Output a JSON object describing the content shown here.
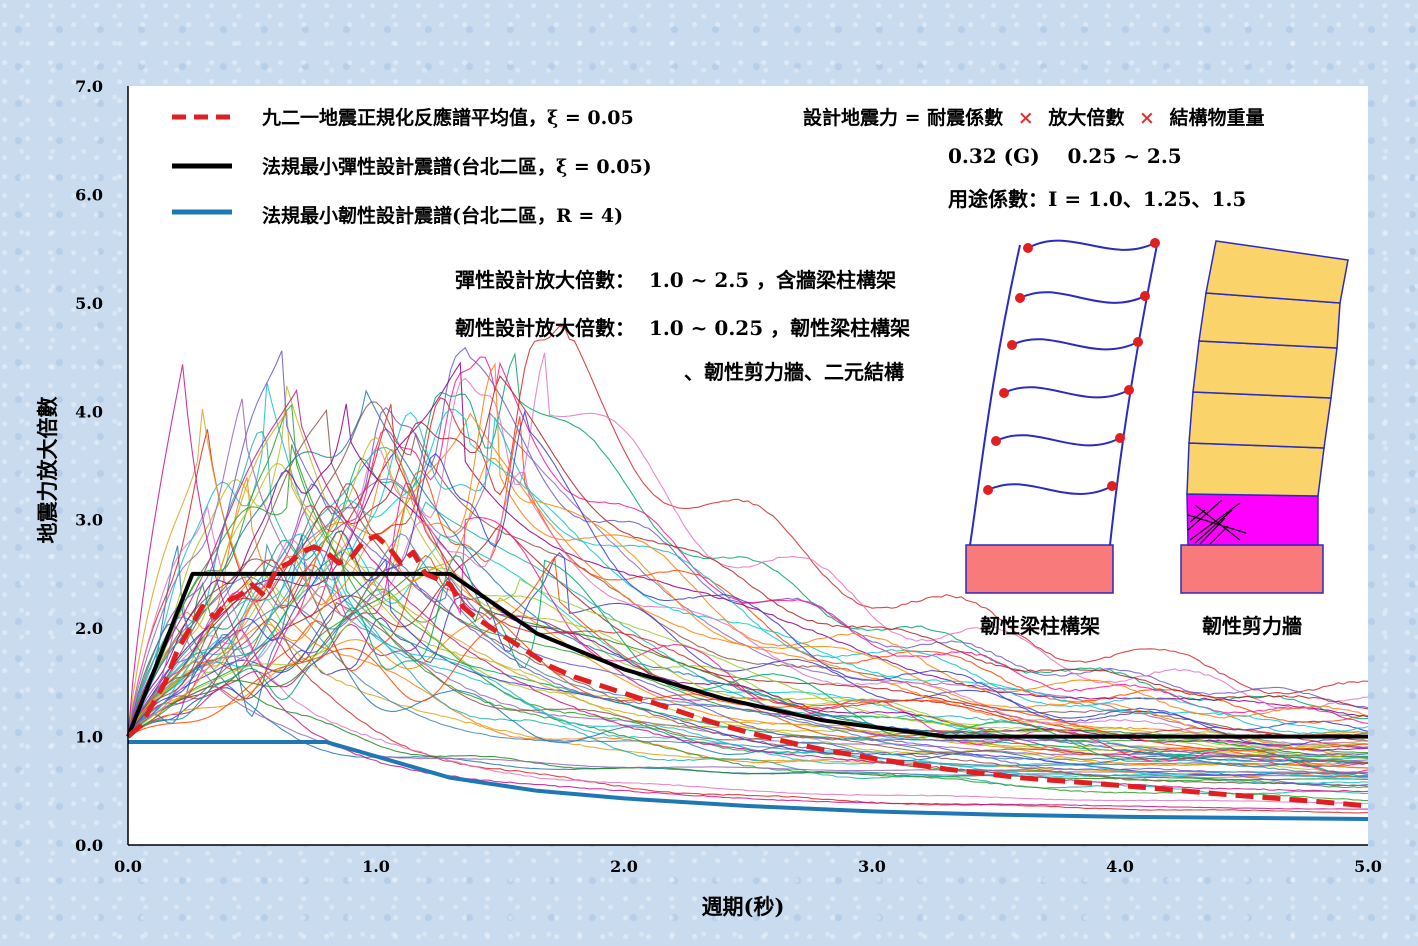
{
  "chart_data": {
    "type": "line",
    "xlabel": "週期(秒)",
    "ylabel": "地震力放大倍數",
    "xlim": [
      0,
      5
    ],
    "ylim": [
      0,
      7
    ],
    "x_ticks": [
      "0.0",
      "1.0",
      "2.0",
      "3.0",
      "4.0",
      "5.0"
    ],
    "y_ticks": [
      "0.0",
      "1.0",
      "2.0",
      "3.0",
      "4.0",
      "5.0",
      "6.0",
      "7.0"
    ],
    "grid": false,
    "legend_position": "top-left",
    "legend": [
      {
        "label": "九二一地震正規化反應譜平均值，ξ = 0.05",
        "color": "#e02020",
        "style": "dashed"
      },
      {
        "label": "法規最小彈性設計震譜(台北二區，ξ = 0.05)",
        "color": "#000000",
        "style": "solid"
      },
      {
        "label": "法規最小韌性設計震譜(台北二區，R = 4)",
        "color": "#1f77b4",
        "style": "solid"
      }
    ],
    "series": [
      {
        "name": "九二一地震正規化反應譜平均值，ξ = 0.05",
        "color": "#e02020",
        "x": [
          0,
          0.05,
          0.1,
          0.15,
          0.2,
          0.25,
          0.3,
          0.35,
          0.4,
          0.45,
          0.5,
          0.55,
          0.6,
          0.65,
          0.7,
          0.75,
          0.8,
          0.85,
          0.9,
          0.95,
          1.0,
          1.05,
          1.1,
          1.15,
          1.2,
          1.25,
          1.3,
          1.35,
          1.4,
          1.5,
          1.6,
          1.7,
          1.8,
          2.0,
          2.2,
          2.4,
          2.6,
          2.8,
          3.0,
          3.3,
          3.6,
          4.0,
          4.4,
          4.8,
          5.0
        ],
        "y": [
          1.0,
          1.1,
          1.3,
          1.5,
          1.8,
          2.0,
          2.2,
          2.1,
          2.25,
          2.3,
          2.4,
          2.3,
          2.55,
          2.6,
          2.7,
          2.75,
          2.7,
          2.6,
          2.65,
          2.8,
          2.85,
          2.75,
          2.6,
          2.7,
          2.5,
          2.45,
          2.4,
          2.2,
          2.1,
          1.95,
          1.8,
          1.65,
          1.55,
          1.4,
          1.25,
          1.1,
          0.98,
          0.88,
          0.8,
          0.7,
          0.62,
          0.55,
          0.47,
          0.4,
          0.36
        ]
      },
      {
        "name": "法規最小彈性設計震譜(台北二區，ξ = 0.05)",
        "color": "#000000",
        "x": [
          0,
          0.26,
          1.3,
          1.65,
          2.0,
          2.4,
          2.8,
          3.3,
          4.0,
          5.0
        ],
        "y": [
          1.0,
          2.5,
          2.5,
          1.95,
          1.62,
          1.35,
          1.15,
          1.0,
          1.0,
          1.0
        ]
      },
      {
        "name": "法規最小韌性設計震譜(台北二區，R = 4)",
        "color": "#1f77b4",
        "x": [
          0,
          0.26,
          0.8,
          1.3,
          1.65,
          2.0,
          2.5,
          3.0,
          3.5,
          4.0,
          5.0
        ],
        "y": [
          0.95,
          0.95,
          0.95,
          0.62,
          0.5,
          0.43,
          0.36,
          0.31,
          0.28,
          0.26,
          0.24
        ]
      }
    ],
    "background_series_note": "",
    "annotations": {
      "formula": "設計地震力 = 耐震係數 × 放大倍數 × 結構物重量",
      "formula_parts": [
        "設計地震力 = 耐震係數",
        "×",
        "放大倍數",
        "×",
        "結構物重量"
      ],
      "coef": "0.32 (G)    0.25 ~ 2.5",
      "importance": "用途係數：I = 1.0、1.25、1.5",
      "elastic": "彈性設計放大倍數：  1.0 ~ 2.5 ，含牆梁柱構架",
      "ductile1": "韌性設計放大倍數：  1.0 ~ 0.25 ，韌性梁柱構架",
      "ductile2": "、韌性剪力牆、二元結構",
      "frame_label": "韌性梁柱構架",
      "wall_label": "韌性剪力牆"
    },
    "colors": {
      "multiply_sign": "#e03030",
      "hinge": "#e02020",
      "frame_line": "#2b2bc0",
      "base": "#f87a7a",
      "wall_fill": "#fad46a",
      "plastic_zone": "#ff00ff"
    }
  }
}
